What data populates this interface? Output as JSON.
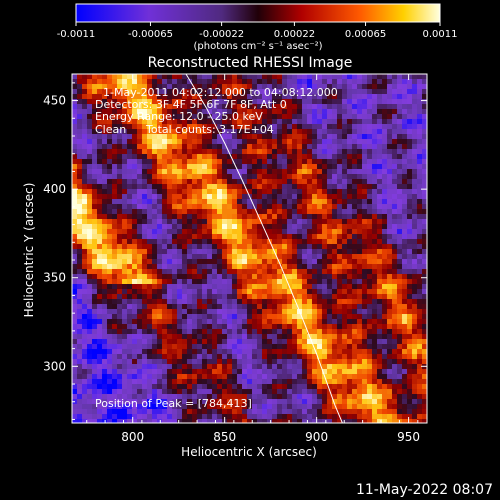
{
  "chart_data": {
    "type": "heatmap",
    "title": "Reconstructed RHESSI Image",
    "xlabel": "Heliocentric X (arcsec)",
    "ylabel": "Heliocentric Y (arcsec)",
    "xlim": [
      767,
      960
    ],
    "ylim": [
      268,
      465
    ],
    "xticks": [
      800,
      850,
      900,
      950
    ],
    "yticks": [
      300,
      350,
      400,
      450
    ],
    "colorbar": {
      "range": [
        -0.0011,
        0.0011
      ],
      "tick_values": [
        -0.0011,
        -0.00065,
        -0.00022,
        0.00022,
        0.00065,
        0.0011
      ],
      "tick_labels": [
        "-0.0011",
        "-0.00065",
        "-0.00022",
        "0.00022",
        "0.00065",
        "0.0011"
      ],
      "label": "(photons cm⁻² s⁻¹ asec⁻²)"
    },
    "annotations": [
      "1-May-2011 04:02:12.000 to 04:08:12.000",
      "Detectors: 3F 4F 5F 6F 7F 8F, Att 0",
      "Energy Range: 12.0 - 25.0 keV",
      "Clean",
      "Total counts: 3.17E+04"
    ],
    "peak_label": "Position of Peak = [784,413]",
    "limb_curve": [
      [
        829,
        465
      ],
      [
        840,
        446
      ],
      [
        850,
        426
      ],
      [
        860,
        404
      ],
      [
        870,
        381
      ],
      [
        880,
        358
      ],
      [
        890,
        333
      ],
      [
        900,
        307
      ],
      [
        910,
        278
      ],
      [
        914,
        268
      ]
    ],
    "colors": {
      "background": "#000000",
      "foreground": "#ffffff",
      "colormap": [
        "#0000ff",
        "#8a44d6",
        "#6a3caa",
        "#3a0a12",
        "#b00000",
        "#ff5a00",
        "#ffd000",
        "#ffffd8"
      ]
    }
  },
  "footer": {
    "timestamp": "11-May-2022 08:07"
  }
}
